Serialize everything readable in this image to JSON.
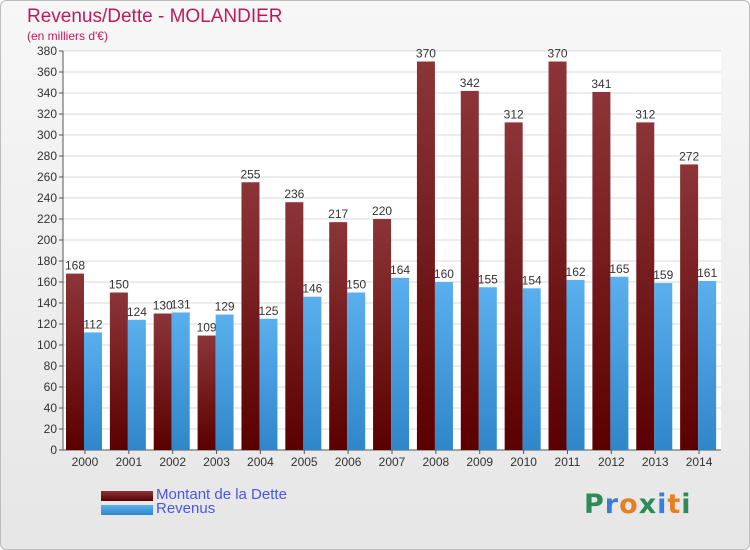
{
  "title": "Revenus/Dette - MOLANDIER",
  "subtitle": "(en milliers d'€)",
  "colors": {
    "dette_top": "#8c3538",
    "dette_bottom": "#5a0000",
    "revenus_top": "#5ab0ee",
    "revenus_bottom": "#2f86c9",
    "title": "#c2185b"
  },
  "logo": {
    "text": "Proxiti",
    "letters": [
      {
        "ch": "P",
        "color": "#2e8b57"
      },
      {
        "ch": "r",
        "color": "#3b7dd8"
      },
      {
        "ch": "o",
        "color": "#e67e22"
      },
      {
        "ch": "x",
        "color": "#2e8b57"
      },
      {
        "ch": "i",
        "color": "#3b7dd8"
      },
      {
        "ch": "t",
        "color": "#e67e22"
      },
      {
        "ch": "i",
        "color": "#2e8b57"
      }
    ]
  },
  "chart_data": {
    "type": "bar",
    "title": "Revenus/Dette - MOLANDIER",
    "ylabel": "(en milliers d'€)",
    "xlabel": "",
    "ylim": [
      0,
      380
    ],
    "ytick_step": 20,
    "grid": true,
    "legend_position": "bottom-left",
    "categories": [
      "2000",
      "2001",
      "2002",
      "2003",
      "2004",
      "2005",
      "2006",
      "2007",
      "2008",
      "2009",
      "2010",
      "2011",
      "2012",
      "2013",
      "2014"
    ],
    "series": [
      {
        "name": "Montant de la Dette",
        "values": [
          168,
          150,
          130,
          109,
          255,
          236,
          217,
          220,
          370,
          342,
          312,
          370,
          341,
          312,
          272
        ]
      },
      {
        "name": "Revenus",
        "values": [
          112,
          124,
          131,
          129,
          125,
          146,
          150,
          164,
          160,
          155,
          154,
          162,
          165,
          159,
          161
        ]
      }
    ]
  }
}
